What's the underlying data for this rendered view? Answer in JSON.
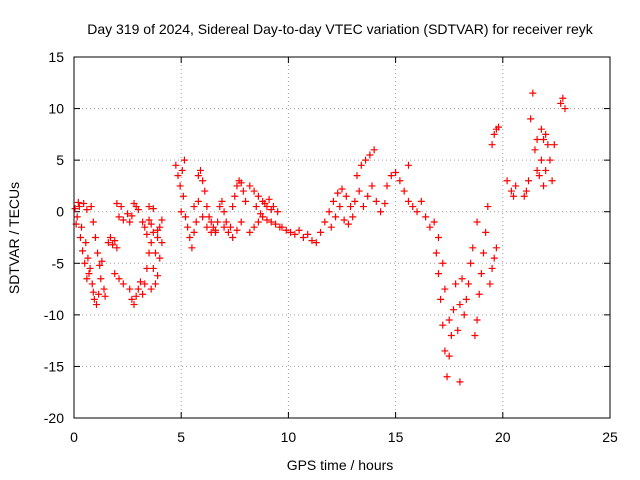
{
  "chart_data": {
    "type": "scatter",
    "title": "Day 319 of 2024, Sidereal Day-to-day VTEC variation (SDTVAR) for receiver reyk",
    "xlabel": "GPS time / hours",
    "ylabel": "SDTVAR / TECUs",
    "xlim": [
      0,
      25
    ],
    "ylim": [
      -20,
      15
    ],
    "xticks": [
      0,
      5,
      10,
      15,
      20,
      25
    ],
    "xtick_labels": [
      "0",
      "5",
      "10",
      "15",
      "20",
      "25"
    ],
    "yticks": [
      -20,
      -15,
      -10,
      -5,
      0,
      5,
      10,
      15
    ],
    "ytick_labels": [
      "-20",
      "-15",
      "-10",
      "-5",
      "0",
      "5",
      "10",
      "15"
    ],
    "grid": true,
    "marker": "plus",
    "series": [
      {
        "name": "SDTVAR",
        "color": "#ff0000",
        "points": [
          [
            0.05,
            0.3
          ],
          [
            0.15,
            -0.5
          ],
          [
            0.25,
            0.5
          ],
          [
            0.35,
            -1.5
          ],
          [
            0.45,
            0.8
          ],
          [
            0.55,
            -3.0
          ],
          [
            0.6,
            0.2
          ],
          [
            0.65,
            -4.5
          ],
          [
            0.75,
            -5.5
          ],
          [
            0.85,
            -7.0
          ],
          [
            0.95,
            -8.5
          ],
          [
            1.05,
            -9.0
          ],
          [
            1.15,
            -8.0
          ],
          [
            1.25,
            -6.5
          ],
          [
            0.3,
            -2.5
          ],
          [
            0.4,
            -3.8
          ],
          [
            0.5,
            -5.0
          ],
          [
            0.7,
            -6.0
          ],
          [
            0.8,
            0.5
          ],
          [
            0.9,
            -1.0
          ],
          [
            1.0,
            -2.5
          ],
          [
            1.1,
            -4.0
          ],
          [
            1.2,
            -5.2
          ],
          [
            1.3,
            -4.8
          ],
          [
            0.2,
            0.9
          ],
          [
            0.1,
            -1.2
          ],
          [
            0.6,
            -6.5
          ],
          [
            0.9,
            -7.8
          ],
          [
            1.4,
            -7.5
          ],
          [
            1.45,
            -8.2
          ],
          [
            1.6,
            -3.0
          ],
          [
            1.7,
            -2.5
          ],
          [
            1.8,
            -3.2
          ],
          [
            1.9,
            -2.8
          ],
          [
            2.0,
            -3.5
          ],
          [
            2.1,
            -0.5
          ],
          [
            2.2,
            0.5
          ],
          [
            2.3,
            -0.8
          ],
          [
            2.0,
            0.8
          ],
          [
            1.9,
            -6.0
          ],
          [
            2.1,
            -6.5
          ],
          [
            2.3,
            -7.0
          ],
          [
            2.5,
            -0.2
          ],
          [
            2.6,
            -1.0
          ],
          [
            2.7,
            -0.4
          ],
          [
            2.8,
            0.8
          ],
          [
            2.9,
            0.5
          ],
          [
            3.0,
            0.2
          ],
          [
            2.6,
            -7.5
          ],
          [
            2.7,
            -8.5
          ],
          [
            2.8,
            -9.0
          ],
          [
            2.9,
            -8.2
          ],
          [
            3.0,
            -7.5
          ],
          [
            3.1,
            -6.8
          ],
          [
            3.2,
            -8.0
          ],
          [
            3.3,
            -7.0
          ],
          [
            3.4,
            -5.5
          ],
          [
            3.5,
            -4.0
          ],
          [
            3.6,
            -3.0
          ],
          [
            3.7,
            -2.0
          ],
          [
            3.2,
            -1.0
          ],
          [
            3.3,
            -1.5
          ],
          [
            3.4,
            -2.2
          ],
          [
            3.5,
            -0.8
          ],
          [
            3.6,
            -1.2
          ],
          [
            3.5,
            0.5
          ],
          [
            3.7,
            -5.5
          ],
          [
            3.8,
            -4.0
          ],
          [
            3.9,
            -2.5
          ],
          [
            4.0,
            -1.5
          ],
          [
            4.1,
            -0.8
          ],
          [
            3.8,
            -7.0
          ],
          [
            3.9,
            -6.2
          ],
          [
            3.6,
            -7.5
          ],
          [
            4.0,
            -4.5
          ],
          [
            4.1,
            -3.0
          ],
          [
            3.7,
            0.3
          ],
          [
            3.9,
            -1.8
          ],
          [
            4.75,
            4.5
          ],
          [
            4.85,
            3.5
          ],
          [
            4.95,
            2.5
          ],
          [
            5.05,
            4.0
          ],
          [
            5.15,
            5.0
          ],
          [
            5.1,
            1.5
          ],
          [
            5.0,
            0.0
          ],
          [
            5.2,
            -0.5
          ],
          [
            5.3,
            -1.5
          ],
          [
            5.4,
            -2.5
          ],
          [
            5.5,
            -3.5
          ],
          [
            5.6,
            -2.0
          ],
          [
            5.7,
            -1.0
          ],
          [
            5.8,
            3.5
          ],
          [
            5.9,
            4.0
          ],
          [
            6.0,
            3.0
          ],
          [
            6.1,
            2.0
          ],
          [
            6.2,
            0.5
          ],
          [
            6.3,
            -0.5
          ],
          [
            6.4,
            -1.0
          ],
          [
            6.5,
            -1.5
          ],
          [
            6.6,
            -2.0
          ],
          [
            6.7,
            -1.0
          ],
          [
            6.8,
            0.5
          ],
          [
            6.9,
            1.0
          ],
          [
            7.0,
            0.0
          ],
          [
            7.1,
            -1.0
          ],
          [
            7.2,
            -2.0
          ],
          [
            7.3,
            -1.5
          ],
          [
            7.4,
            0.5
          ],
          [
            7.5,
            1.5
          ],
          [
            7.6,
            2.5
          ],
          [
            7.7,
            3.0
          ],
          [
            7.8,
            2.8
          ],
          [
            7.9,
            2.0
          ],
          [
            8.0,
            1.0
          ],
          [
            5.6,
            0.5
          ],
          [
            5.8,
            1.0
          ],
          [
            6.0,
            -0.5
          ],
          [
            6.2,
            -1.5
          ],
          [
            6.4,
            -2.0
          ],
          [
            6.6,
            -1.8
          ],
          [
            7.0,
            -1.5
          ],
          [
            7.4,
            -2.5
          ],
          [
            7.6,
            -1.8
          ],
          [
            7.8,
            -1.0
          ],
          [
            8.2,
            -2.0
          ],
          [
            8.4,
            -1.5
          ],
          [
            8.2,
            2.5
          ],
          [
            8.4,
            2.0
          ],
          [
            8.6,
            1.5
          ],
          [
            8.8,
            1.0
          ],
          [
            9.0,
            0.5
          ],
          [
            9.2,
            0.2
          ],
          [
            8.6,
            -1.0
          ],
          [
            8.8,
            -0.5
          ],
          [
            9.0,
            -0.8
          ],
          [
            9.2,
            -1.0
          ],
          [
            9.4,
            -1.2
          ],
          [
            9.6,
            -1.5
          ],
          [
            8.5,
            0.5
          ],
          [
            8.7,
            -0.2
          ],
          [
            8.9,
            0.8
          ],
          [
            9.1,
            1.2
          ],
          [
            9.3,
            0.5
          ],
          [
            9.5,
            0.0
          ],
          [
            9.7,
            -1.5
          ],
          [
            9.9,
            -1.8
          ],
          [
            10.1,
            -2.0
          ],
          [
            10.3,
            -2.2
          ],
          [
            10.5,
            -1.8
          ],
          [
            10.7,
            -2.5
          ],
          [
            10.9,
            -2.2
          ],
          [
            11.1,
            -2.8
          ],
          [
            11.3,
            -3.0
          ],
          [
            11.5,
            -2.0
          ],
          [
            11.7,
            -1.0
          ],
          [
            11.9,
            0.0
          ],
          [
            12.1,
            1.0
          ],
          [
            12.3,
            1.8
          ],
          [
            12.5,
            2.2
          ],
          [
            12.7,
            1.5
          ],
          [
            12.9,
            0.5
          ],
          [
            13.1,
            1.0
          ],
          [
            12.0,
            -1.5
          ],
          [
            12.2,
            -0.5
          ],
          [
            12.4,
            0.5
          ],
          [
            12.6,
            -0.8
          ],
          [
            12.8,
            -1.2
          ],
          [
            13.0,
            -0.5
          ],
          [
            13.2,
            3.5
          ],
          [
            13.4,
            4.5
          ],
          [
            13.6,
            5.0
          ],
          [
            13.8,
            5.5
          ],
          [
            14.0,
            6.0
          ],
          [
            13.3,
            2.0
          ],
          [
            13.5,
            0.5
          ],
          [
            13.7,
            1.5
          ],
          [
            13.9,
            2.5
          ],
          [
            14.1,
            1.0
          ],
          [
            14.3,
            0.0
          ],
          [
            14.5,
            0.8
          ],
          [
            14.6,
            2.5
          ],
          [
            14.8,
            3.5
          ],
          [
            15.0,
            3.8
          ],
          [
            15.2,
            3.0
          ],
          [
            15.4,
            2.0
          ],
          [
            15.6,
            4.5
          ],
          [
            15.6,
            1.0
          ],
          [
            15.8,
            0.5
          ],
          [
            16.0,
            0.0
          ],
          [
            16.2,
            1.0
          ],
          [
            16.4,
            -0.5
          ],
          [
            16.6,
            -1.5
          ],
          [
            16.8,
            -1.0
          ],
          [
            17.0,
            -2.5
          ],
          [
            16.9,
            -4.0
          ],
          [
            17.0,
            -6.0
          ],
          [
            17.1,
            -8.5
          ],
          [
            17.2,
            -11.0
          ],
          [
            17.3,
            -13.5
          ],
          [
            17.4,
            -16.0
          ],
          [
            17.5,
            -14.0
          ],
          [
            17.6,
            -12.0
          ],
          [
            17.7,
            -9.5
          ],
          [
            17.8,
            -7.0
          ],
          [
            17.2,
            -5.0
          ],
          [
            17.3,
            -7.5
          ],
          [
            17.5,
            -10.5
          ],
          [
            17.9,
            -11.5
          ],
          [
            18.0,
            -9.0
          ],
          [
            18.1,
            -6.5
          ],
          [
            18.0,
            -16.5
          ],
          [
            18.2,
            -10.0
          ],
          [
            18.3,
            -8.5
          ],
          [
            18.4,
            -7.0
          ],
          [
            18.5,
            -5.0
          ],
          [
            18.6,
            -3.5
          ],
          [
            18.7,
            -12.0
          ],
          [
            18.8,
            -10.5
          ],
          [
            18.9,
            -8.0
          ],
          [
            19.0,
            -6.0
          ],
          [
            19.1,
            -4.0
          ],
          [
            19.2,
            -2.0
          ],
          [
            19.3,
            0.5
          ],
          [
            19.4,
            -7.0
          ],
          [
            19.5,
            -5.5
          ],
          [
            19.6,
            -4.5
          ],
          [
            19.7,
            -3.5
          ],
          [
            18.8,
            -1.0
          ],
          [
            19.5,
            6.5
          ],
          [
            19.6,
            7.5
          ],
          [
            19.7,
            8.0
          ],
          [
            19.8,
            8.2
          ],
          [
            20.2,
            3.0
          ],
          [
            20.4,
            2.0
          ],
          [
            20.5,
            1.5
          ],
          [
            20.6,
            2.5
          ],
          [
            21.0,
            1.5
          ],
          [
            21.1,
            2.0
          ],
          [
            21.2,
            3.0
          ],
          [
            21.3,
            9.0
          ],
          [
            21.4,
            11.5
          ],
          [
            21.5,
            6.0
          ],
          [
            21.6,
            4.0
          ],
          [
            21.7,
            3.5
          ],
          [
            21.8,
            5.0
          ],
          [
            21.9,
            7.0
          ],
          [
            22.0,
            7.5
          ],
          [
            22.1,
            6.5
          ],
          [
            22.2,
            5.0
          ],
          [
            22.3,
            3.0
          ],
          [
            22.4,
            6.5
          ],
          [
            22.7,
            10.5
          ],
          [
            22.8,
            11.0
          ],
          [
            22.9,
            10.0
          ],
          [
            21.9,
            2.5
          ],
          [
            22.0,
            4.0
          ],
          [
            21.6,
            7.0
          ],
          [
            21.8,
            8.0
          ]
        ]
      }
    ]
  }
}
